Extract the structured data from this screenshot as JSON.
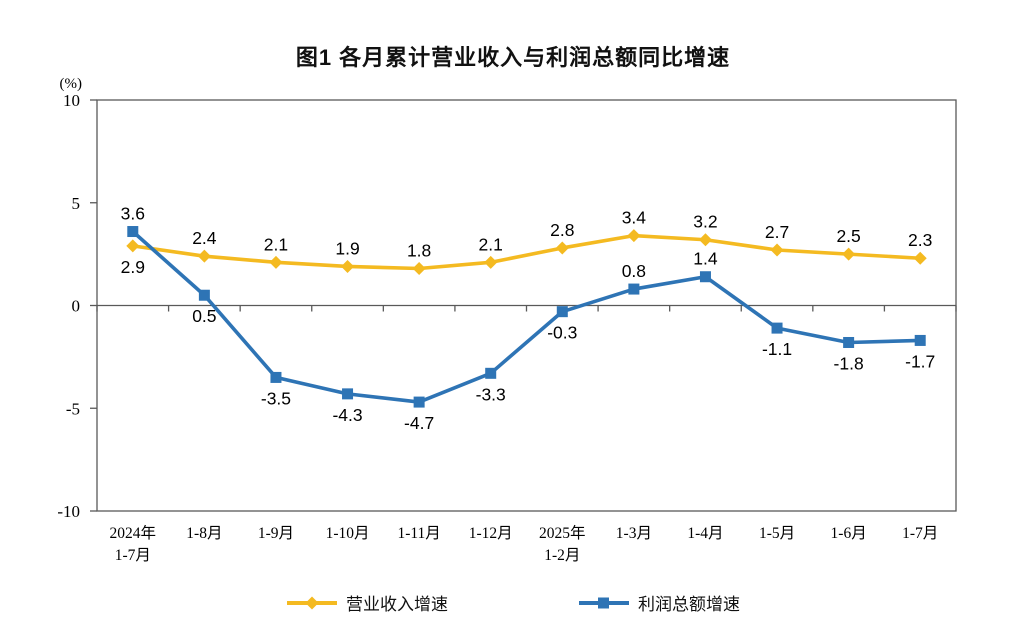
{
  "page": {
    "title": "图1 各月累计营业收入与利润总额同比增速"
  },
  "chart_data": {
    "type": "line",
    "title": "图1 各月累计营业收入与利润总额同比增速",
    "y_unit": "(%)",
    "ylim": [
      -10,
      10
    ],
    "y_ticks": [
      10,
      5,
      0,
      -5,
      -10
    ],
    "grid": false,
    "legend_position": "bottom",
    "categories": [
      [
        "2024年",
        "1-7月"
      ],
      [
        "1-8月"
      ],
      [
        "1-9月"
      ],
      [
        "1-10月"
      ],
      [
        "1-11月"
      ],
      [
        "1-12月"
      ],
      [
        "2025年",
        "1-2月"
      ],
      [
        "1-3月"
      ],
      [
        "1-4月"
      ],
      [
        "1-5月"
      ],
      [
        "1-6月"
      ],
      [
        "1-7月"
      ]
    ],
    "series": [
      {
        "name": "营业收入增速",
        "color": "#F4BA21",
        "marker": "diamond",
        "values": [
          2.9,
          2.4,
          2.1,
          1.9,
          1.8,
          2.1,
          2.8,
          3.4,
          3.2,
          2.7,
          2.5,
          2.3
        ],
        "label_pos": [
          "below",
          "above",
          "above",
          "above",
          "above",
          "above",
          "above",
          "above",
          "above",
          "above",
          "above",
          "above"
        ]
      },
      {
        "name": "利润总额增速",
        "color": "#2E74B5",
        "marker": "square",
        "values": [
          3.6,
          0.5,
          -3.5,
          -4.3,
          -4.7,
          -3.3,
          -0.3,
          0.8,
          1.4,
          -1.1,
          -1.8,
          -1.7
        ],
        "label_pos": [
          "above",
          "below",
          "below",
          "below",
          "below",
          "below",
          "below",
          "above",
          "above",
          "below",
          "below",
          "below"
        ]
      }
    ],
    "axis_color": "#595959",
    "text_color": "#000000"
  }
}
